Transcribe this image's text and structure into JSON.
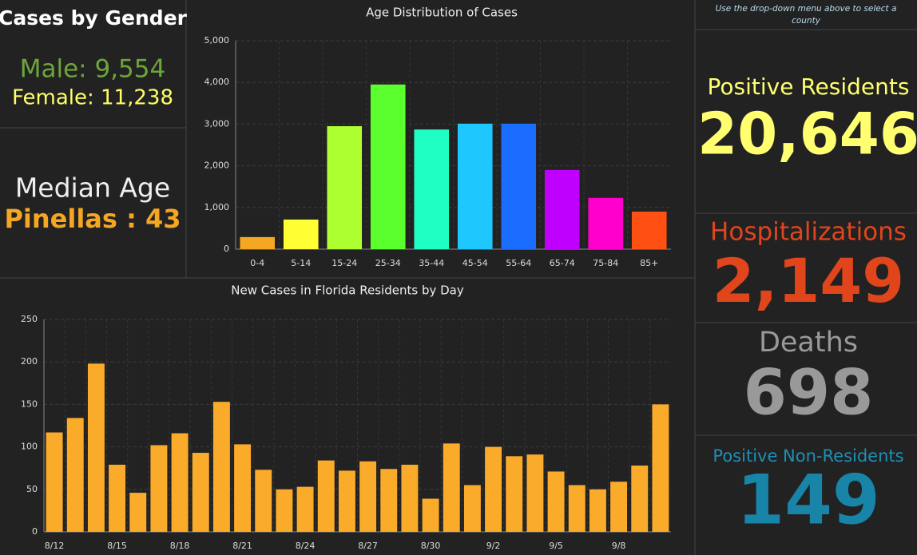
{
  "gender": {
    "title": "Cases by Gender",
    "male": "Male: 9,554",
    "female": "Female: 11,238"
  },
  "median": {
    "title": "Median Age",
    "value": "Pinellas : 43"
  },
  "note": "Use the drop-down menu above to select a county",
  "stats": [
    {
      "label": "Positive Residents",
      "value": "20,646"
    },
    {
      "label": "Hospitalizations",
      "value": "2,149"
    },
    {
      "label": "Deaths",
      "value": "698"
    },
    {
      "label": "Positive Non-Residents",
      "value": "149"
    }
  ],
  "chart_data": [
    {
      "type": "bar",
      "title": "Age Distribution of Cases",
      "categories": [
        "0-4",
        "5-14",
        "15-24",
        "25-34",
        "35-44",
        "45-54",
        "55-64",
        "65-74",
        "75-84",
        "85+"
      ],
      "values": [
        290,
        710,
        2950,
        3950,
        2870,
        3010,
        3010,
        1900,
        1230,
        900
      ],
      "colors": [
        "#f5a623",
        "#ffff33",
        "#adff2f",
        "#5cff2e",
        "#1effc4",
        "#1ec8ff",
        "#1a6dff",
        "#c000ff",
        "#ff00cc",
        "#ff5014"
      ],
      "ylim": [
        0,
        5000
      ],
      "yticks": [
        0,
        {
          "value": 1000,
          "label": "1,000"
        },
        {
          "value": 2000,
          "label": "2,000"
        },
        {
          "value": 3000,
          "label": "3,000"
        },
        {
          "value": 4000,
          "label": "4,000"
        },
        {
          "value": 5000,
          "label": "5,000"
        }
      ],
      "grid": true
    },
    {
      "type": "bar",
      "title": "New Cases in Florida Residents by Day",
      "categories": [
        "8/12",
        null,
        null,
        "8/15",
        null,
        null,
        "8/18",
        null,
        null,
        "8/21",
        null,
        null,
        "8/24",
        null,
        null,
        "8/27",
        null,
        null,
        "8/30",
        null,
        null,
        "9/2",
        null,
        null,
        "9/5",
        null,
        null,
        "9/8",
        null,
        null
      ],
      "values": [
        117,
        134,
        198,
        79,
        46,
        102,
        116,
        93,
        153,
        103,
        73,
        50,
        53,
        84,
        72,
        83,
        74,
        79,
        39,
        104,
        55,
        100,
        89,
        91,
        71,
        55,
        50,
        59,
        78,
        150
      ],
      "color": "#fbab2a",
      "ylim": [
        0,
        250
      ],
      "yticks": [
        0,
        50,
        100,
        150,
        200,
        250
      ],
      "grid": true
    }
  ]
}
